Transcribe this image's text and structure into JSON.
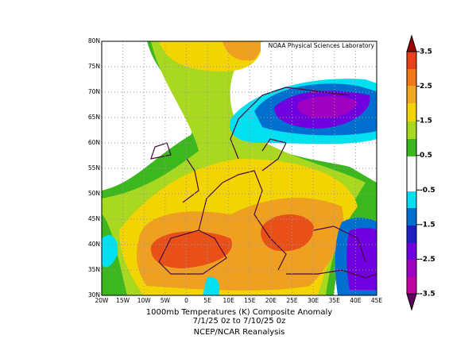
{
  "header": {
    "credit": "NOAA Physical Sciences Laboratory"
  },
  "map": {
    "lat_labels": [
      "80N",
      "75N",
      "70N",
      "65N",
      "60N",
      "55N",
      "50N",
      "45N",
      "40N",
      "35N",
      "30N"
    ],
    "lon_labels": [
      "20W",
      "15W",
      "10W",
      "5W",
      "0",
      "5E",
      "10E",
      "15E",
      "20E",
      "25E",
      "30E",
      "35E",
      "40E",
      "45E"
    ]
  },
  "colorbar": {
    "labels": [
      "3.5",
      "2.5",
      "1.5",
      "0.5",
      "-0.5",
      "-1.5",
      "-2.5",
      "-3.5"
    ]
  },
  "caption": {
    "line1": "1000mb Temperatures (K)   Composite Anomaly",
    "line2": "7/1/25 0z  to 7/10/25 0z",
    "source": "NCEP/NCAR Reanalysis"
  }
}
